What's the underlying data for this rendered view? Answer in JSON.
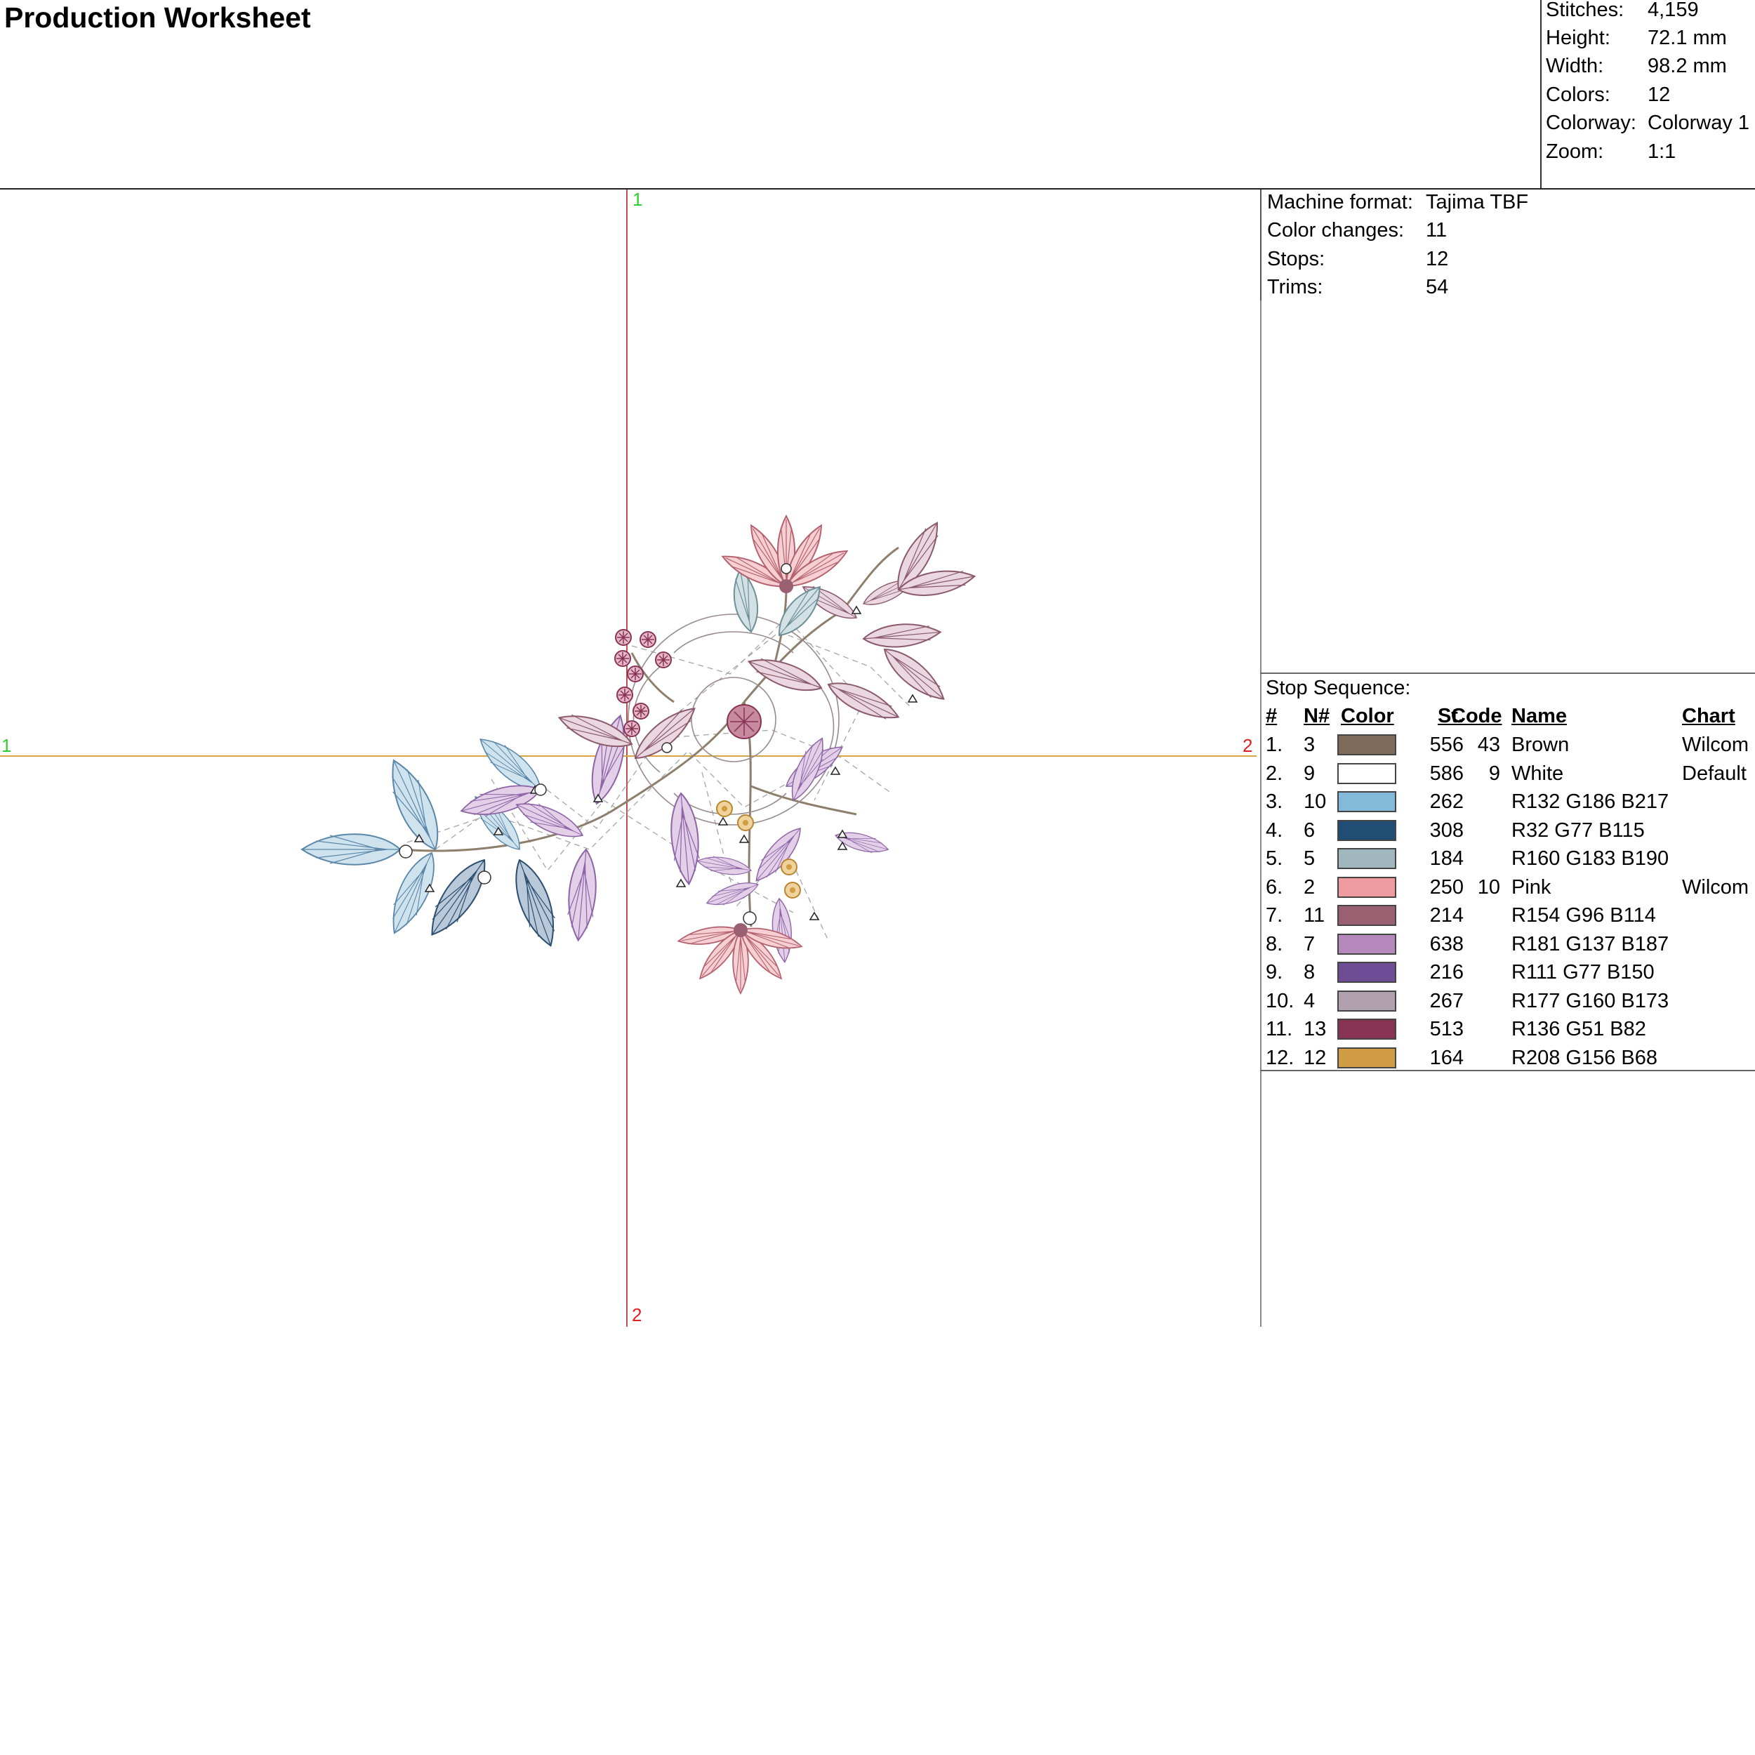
{
  "title": "Production Worksheet",
  "summary": [
    {
      "label": "Stitches:",
      "value": "4,159"
    },
    {
      "label": "Height:",
      "value": "72.1 mm"
    },
    {
      "label": "Width:",
      "value": "98.2 mm"
    },
    {
      "label": "Colors:",
      "value": "12"
    },
    {
      "label": "Colorway:",
      "value": "Colorway 1"
    },
    {
      "label": "Zoom:",
      "value": "1:1"
    }
  ],
  "machine": [
    {
      "label": "Machine format:",
      "value": "Tajima TBF"
    },
    {
      "label": "Color changes:",
      "value": "11"
    },
    {
      "label": "Stops:",
      "value": "12"
    },
    {
      "label": "Trims:",
      "value": "54"
    }
  ],
  "axes": {
    "v_top_label": "1",
    "v_bottom_label": "2",
    "h_left_label": "1",
    "h_right_label": "2",
    "v_color": "#c0504d",
    "h_color": "#d9a441",
    "start_label_color": "#33cc33",
    "end_label_color": "#dd2222"
  },
  "stop_sequence": {
    "title": "Stop Sequence:",
    "headers": {
      "idx": "#",
      "needle": "N#",
      "color": "Color",
      "stitches": "St.",
      "code": "Code",
      "name": "Name",
      "chart": "Chart"
    },
    "rows": [
      {
        "idx": "1.",
        "needle": "3",
        "color": "#7f6b59",
        "stitches": "556",
        "code": "43",
        "name": "Brown",
        "chart": "Wilcom"
      },
      {
        "idx": "2.",
        "needle": "9",
        "color": "#ffffff",
        "stitches": "586",
        "code": "9",
        "name": "White",
        "chart": "Default"
      },
      {
        "idx": "3.",
        "needle": "10",
        "color": "#84bad9",
        "stitches": "262",
        "code": "",
        "name": "R132 G186 B217",
        "chart": ""
      },
      {
        "idx": "4.",
        "needle": "6",
        "color": "#204d73",
        "stitches": "308",
        "code": "",
        "name": "R32 G77 B115",
        "chart": ""
      },
      {
        "idx": "5.",
        "needle": "5",
        "color": "#a0b7be",
        "stitches": "184",
        "code": "",
        "name": "R160 G183 B190",
        "chart": ""
      },
      {
        "idx": "6.",
        "needle": "2",
        "color": "#ef9ba0",
        "stitches": "250",
        "code": "10",
        "name": "Pink",
        "chart": "Wilcom"
      },
      {
        "idx": "7.",
        "needle": "11",
        "color": "#9a6072",
        "stitches": "214",
        "code": "",
        "name": "R154 G96 B114",
        "chart": ""
      },
      {
        "idx": "8.",
        "needle": "7",
        "color": "#b589bb",
        "stitches": "638",
        "code": "",
        "name": "R181 G137 B187",
        "chart": ""
      },
      {
        "idx": "9.",
        "needle": "8",
        "color": "#6f4d96",
        "stitches": "216",
        "code": "",
        "name": "R111 G77 B150",
        "chart": ""
      },
      {
        "idx": "10.",
        "needle": "4",
        "color": "#b1a0ad",
        "stitches": "267",
        "code": "",
        "name": "R177 G160 B173",
        "chart": ""
      },
      {
        "idx": "11.",
        "needle": "13",
        "color": "#883352",
        "stitches": "513",
        "code": "",
        "name": "R136 G51 B82",
        "chart": ""
      },
      {
        "idx": "12.",
        "needle": "12",
        "color": "#d09c44",
        "stitches": "164",
        "code": "",
        "name": "R208 G156 B68",
        "chart": ""
      }
    ]
  }
}
